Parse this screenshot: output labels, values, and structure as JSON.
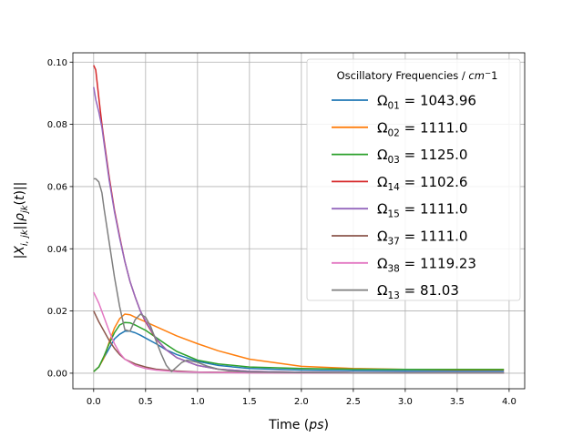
{
  "chart_data": {
    "type": "line",
    "title": "",
    "xlabel": "Time (ps)",
    "ylabel": "|X_{i,jk}||ρ_{jk}(t)||",
    "xlim": [
      -0.2,
      4.15
    ],
    "ylim": [
      -0.005,
      0.103
    ],
    "x_ticks": [
      0.0,
      0.5,
      1.0,
      1.5,
      2.0,
      2.5,
      3.0,
      3.5,
      4.0
    ],
    "x_tick_labels": [
      "0.0",
      "0.5",
      "1.0",
      "1.5",
      "2.0",
      "2.5",
      "3.0",
      "3.5",
      "4.0"
    ],
    "y_ticks": [
      0.0,
      0.02,
      0.04,
      0.06,
      0.08,
      0.1
    ],
    "y_tick_labels": [
      "0.00",
      "0.02",
      "0.04",
      "0.06",
      "0.08",
      "0.10"
    ],
    "grid": true,
    "legend_title": "Oscillatory Frequencies / cm^-1",
    "legend_placement": "top-right",
    "series": [
      {
        "name": "Ω_{01} = 1043.96",
        "sub": "01",
        "value": "1043.96",
        "color": "#1f77b4",
        "x": [
          0,
          0.05,
          0.1,
          0.15,
          0.2,
          0.25,
          0.3,
          0.35,
          0.4,
          0.45,
          0.5,
          0.6,
          0.7,
          0.8,
          1.0,
          1.2,
          1.5,
          2.0,
          2.5,
          3.0,
          3.5,
          3.95
        ],
        "y": [
          0.0005,
          0.002,
          0.005,
          0.008,
          0.011,
          0.0125,
          0.0135,
          0.0135,
          0.013,
          0.0122,
          0.0113,
          0.0095,
          0.0075,
          0.006,
          0.0038,
          0.0025,
          0.0015,
          0.001,
          0.0008,
          0.0007,
          0.0007,
          0.0007
        ]
      },
      {
        "name": "Ω_{02} = 1111.0",
        "sub": "02",
        "value": "1111.0",
        "color": "#ff7f0e",
        "x": [
          0,
          0.05,
          0.1,
          0.15,
          0.2,
          0.25,
          0.3,
          0.35,
          0.4,
          0.5,
          0.6,
          0.7,
          0.8,
          1.0,
          1.2,
          1.5,
          2.0,
          2.5,
          3.0,
          3.5,
          3.95
        ],
        "y": [
          0.0005,
          0.002,
          0.005,
          0.01,
          0.0145,
          0.0175,
          0.019,
          0.0188,
          0.018,
          0.0165,
          0.015,
          0.0135,
          0.012,
          0.0095,
          0.0072,
          0.0045,
          0.0022,
          0.0015,
          0.0012,
          0.0011,
          0.0011
        ]
      },
      {
        "name": "Ω_{03} = 1125.0",
        "sub": "03",
        "value": "1125.0",
        "color": "#2ca02c",
        "x": [
          0,
          0.05,
          0.1,
          0.15,
          0.2,
          0.25,
          0.3,
          0.35,
          0.4,
          0.5,
          0.6,
          0.7,
          0.8,
          1.0,
          1.2,
          1.5,
          2.0,
          2.5,
          3.0,
          3.5,
          3.95
        ],
        "y": [
          0.0005,
          0.002,
          0.0055,
          0.0095,
          0.013,
          0.0155,
          0.0163,
          0.0162,
          0.0155,
          0.0138,
          0.0115,
          0.0092,
          0.007,
          0.0042,
          0.003,
          0.002,
          0.0015,
          0.0013,
          0.0012,
          0.0012,
          0.0012
        ]
      },
      {
        "name": "Ω_{14} = 1102.6",
        "sub": "14",
        "value": "1102.6",
        "color": "#d62728",
        "x": [
          0,
          0.02,
          0.05,
          0.08,
          0.1,
          0.15,
          0.2,
          0.25,
          0.3,
          0.35,
          0.4,
          0.45,
          0.5,
          0.6,
          0.7,
          0.8,
          1.0,
          1.2,
          1.5,
          2.0,
          2.5,
          3.0,
          3.5,
          3.95
        ],
        "y": [
          0.099,
          0.0975,
          0.0885,
          0.08,
          0.075,
          0.063,
          0.0525,
          0.044,
          0.036,
          0.0295,
          0.0245,
          0.02,
          0.0165,
          0.011,
          0.0075,
          0.005,
          0.0025,
          0.0013,
          0.0006,
          0.0003,
          0.0002,
          0.0002,
          0.0002,
          0.0002
        ]
      },
      {
        "name": "Ω_{15} = 1111.0",
        "sub": "15",
        "value": "1111.0",
        "color": "#9467bd",
        "x": [
          0,
          0.02,
          0.05,
          0.08,
          0.1,
          0.15,
          0.2,
          0.25,
          0.3,
          0.35,
          0.4,
          0.45,
          0.5,
          0.6,
          0.7,
          0.8,
          1.0,
          1.2,
          1.5,
          2.0,
          2.5,
          3.0,
          3.5,
          3.95
        ],
        "y": [
          0.092,
          0.088,
          0.084,
          0.079,
          0.074,
          0.062,
          0.052,
          0.0435,
          0.036,
          0.0295,
          0.0245,
          0.02,
          0.0168,
          0.0112,
          0.0075,
          0.005,
          0.0025,
          0.0013,
          0.0006,
          0.0003,
          0.0002,
          0.0002,
          0.0002,
          0.0002
        ]
      },
      {
        "name": "Ω_{37} = 1111.0",
        "sub": "37",
        "value": "1111.0",
        "color": "#8c564b",
        "x": [
          0,
          0.05,
          0.1,
          0.15,
          0.2,
          0.25,
          0.3,
          0.4,
          0.5,
          0.6,
          0.8,
          1.0,
          1.5,
          2.0,
          3.0,
          3.95
        ],
        "y": [
          0.02,
          0.0165,
          0.0135,
          0.0105,
          0.008,
          0.006,
          0.0045,
          0.003,
          0.002,
          0.0013,
          0.0007,
          0.0004,
          0.0002,
          0.0001,
          0.0001,
          0.0001
        ]
      },
      {
        "name": "Ω_{38} = 1119.23",
        "sub": "38",
        "value": "1119.23",
        "color": "#e377c2",
        "x": [
          0,
          0.05,
          0.1,
          0.15,
          0.2,
          0.25,
          0.3,
          0.4,
          0.5,
          0.6,
          0.8,
          1.0,
          1.5,
          2.0,
          3.0,
          3.95
        ],
        "y": [
          0.026,
          0.0225,
          0.018,
          0.0135,
          0.0095,
          0.0065,
          0.0045,
          0.0025,
          0.0015,
          0.001,
          0.0005,
          0.0003,
          0.0001,
          0.0001,
          0.0001,
          0.0001
        ]
      },
      {
        "name": "Ω_{13} = 81.03",
        "sub": "13",
        "value": "81.03",
        "color": "#7f7f7f",
        "x": [
          0,
          0.02,
          0.05,
          0.08,
          0.1,
          0.15,
          0.2,
          0.25,
          0.3,
          0.35,
          0.4,
          0.45,
          0.5,
          0.55,
          0.6,
          0.65,
          0.7,
          0.75,
          0.8,
          0.85,
          0.9,
          1.0,
          1.1,
          1.2,
          1.3,
          1.5,
          2.0,
          2.5,
          3.0,
          3.5,
          3.95
        ],
        "y": [
          0.0625,
          0.0625,
          0.0615,
          0.058,
          0.053,
          0.042,
          0.031,
          0.0215,
          0.014,
          0.0135,
          0.0172,
          0.019,
          0.018,
          0.015,
          0.0105,
          0.0062,
          0.0025,
          0.0005,
          0.002,
          0.0035,
          0.0042,
          0.0035,
          0.0022,
          0.0013,
          0.0008,
          0.0004,
          0.0002,
          0.0001,
          0.0001,
          0.0001,
          0.0001
        ]
      }
    ]
  }
}
